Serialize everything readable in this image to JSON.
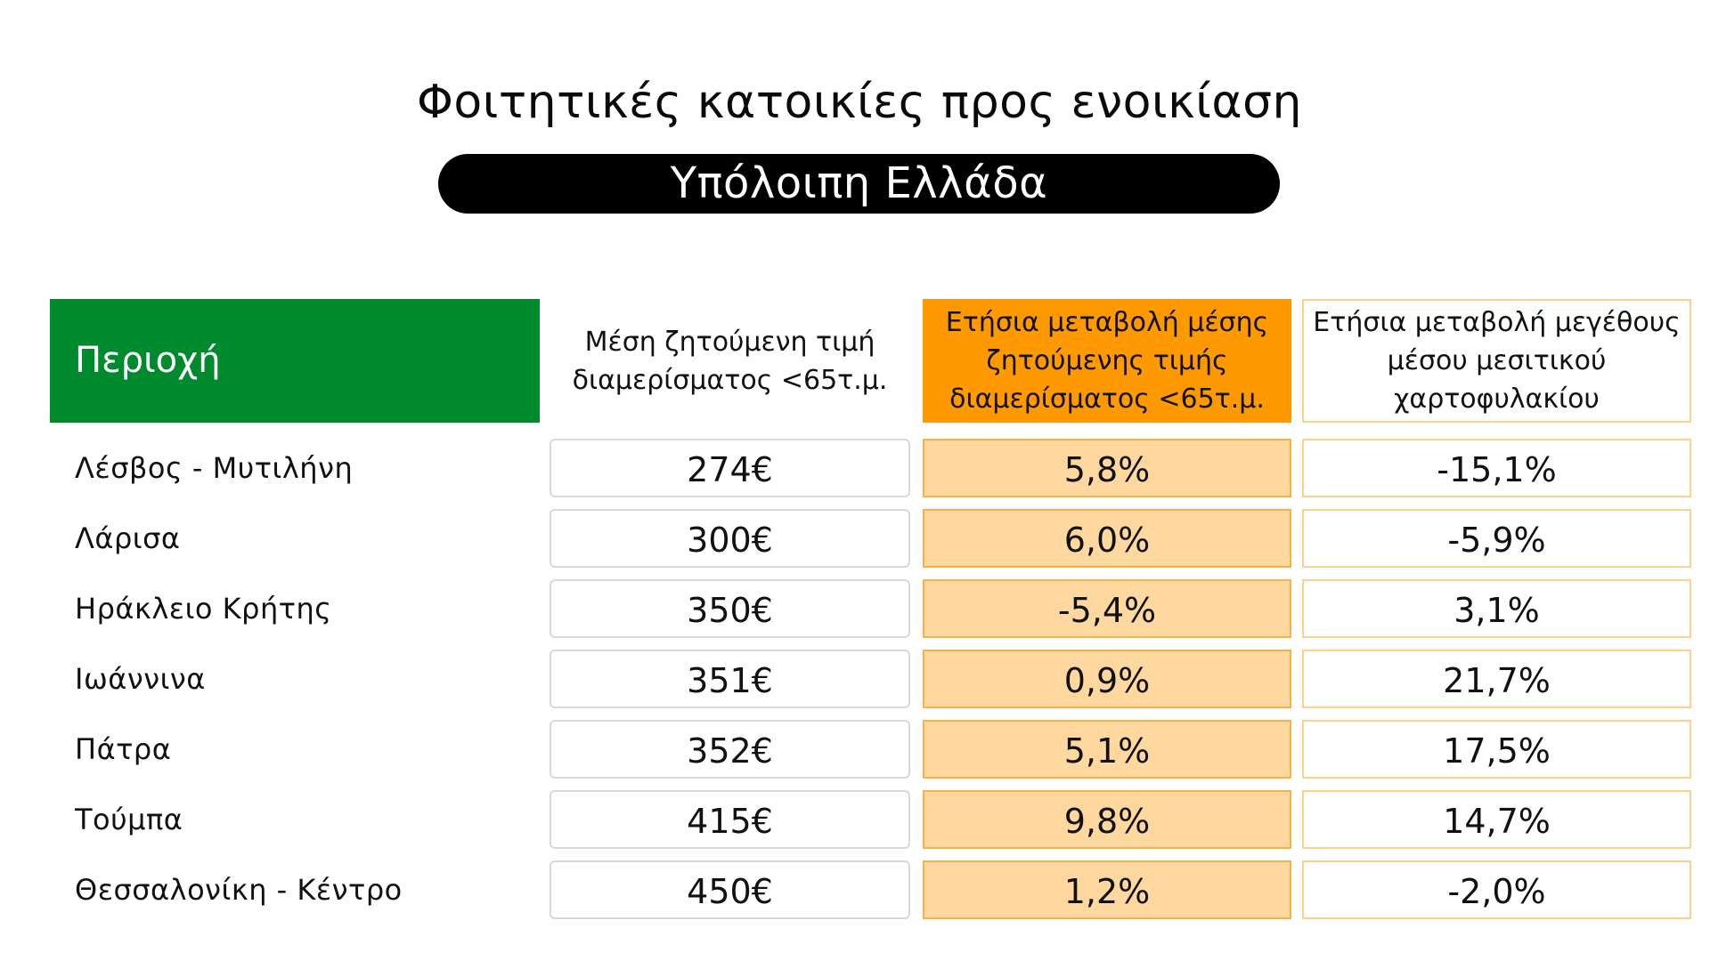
{
  "title": "Φοιτητικές κατοικίες προς ενοικίαση",
  "subtitle": "Υπόλοιπη Ελλάδα",
  "table": {
    "headers": {
      "region": "Περιοχή",
      "price": "Μέση ζητούμενη τιμή διαμερίσματος <65τ.μ.",
      "change_price": "Ετήσια μεταβολή μέσης ζητούμενης τιμής διαμερίσματος <65τ.μ.",
      "change_size": "Ετήσια μεταβολή μεγέθους μέσου μεσιτικού χαρτοφυλακίου"
    },
    "rows": [
      {
        "region": "Λέσβος - Μυτιλήνη",
        "price": "274€",
        "change_price": "5,8%",
        "change_size": "-15,1%"
      },
      {
        "region": "Λάρισα",
        "price": "300€",
        "change_price": "6,0%",
        "change_size": "-5,9%"
      },
      {
        "region": "Ηράκλειο Κρήτης",
        "price": "350€",
        "change_price": "-5,4%",
        "change_size": "3,1%"
      },
      {
        "region": "Ιωάννινα",
        "price": "351€",
        "change_price": "0,9%",
        "change_size": "21,7%"
      },
      {
        "region": "Πάτρα",
        "price": "352€",
        "change_price": "5,1%",
        "change_size": "17,5%"
      },
      {
        "region": "Τούμπα",
        "price": "415€",
        "change_price": "9,8%",
        "change_size": "14,7%"
      },
      {
        "region": "Θεσσαλονίκη - Κέντρο",
        "price": "450€",
        "change_price": "1,2%",
        "change_size": "-2,0%"
      }
    ]
  },
  "colors": {
    "region_header_bg": "#008a2e",
    "change_price_header_bg": "#ff9900",
    "change_price_cell_bg": "#ffd8a0",
    "subtitle_bg": "#000000"
  }
}
